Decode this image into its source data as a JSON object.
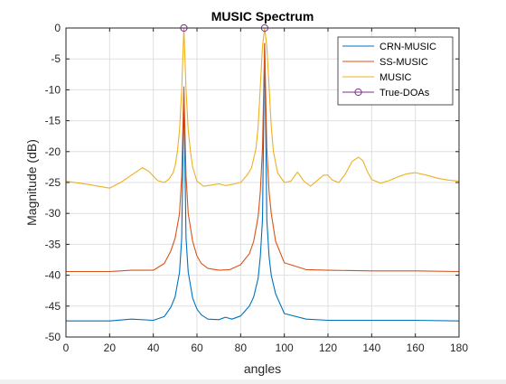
{
  "chart_data": {
    "type": "line",
    "title": "MUSIC Spectrum",
    "xlabel": "angles",
    "ylabel": "Magnitude (dB)",
    "xlim": [
      0,
      180
    ],
    "ylim": [
      -50,
      0
    ],
    "xticks": [
      0,
      20,
      40,
      60,
      80,
      100,
      120,
      140,
      160,
      180
    ],
    "yticks": [
      0,
      -5,
      -10,
      -15,
      -20,
      -25,
      -30,
      -35,
      -40,
      -45,
      -50
    ],
    "grid": true,
    "legend_position": "top-right",
    "series": [
      {
        "name": "CRN-MUSIC",
        "color": "#0072BD",
        "x": [
          0,
          20,
          30,
          40,
          45,
          48,
          50,
          52,
          53,
          54,
          55,
          56,
          58,
          60,
          62,
          65,
          70,
          73,
          76,
          80,
          84,
          86,
          88,
          89,
          90,
          91,
          92,
          93,
          94,
          96,
          100,
          110,
          120,
          140,
          160,
          180
        ],
        "y": [
          -47.4,
          -47.4,
          -47.1,
          -47.3,
          -46.7,
          -45.2,
          -43.5,
          -39.5,
          -34.0,
          -10.5,
          -34.0,
          -39.5,
          -43.7,
          -45.5,
          -46.4,
          -47.1,
          -47.2,
          -46.8,
          -47.1,
          -46.6,
          -45.0,
          -43.5,
          -40.5,
          -37.0,
          -31.0,
          -2.5,
          -31.0,
          -37.0,
          -40.0,
          -43.0,
          -46.2,
          -47.1,
          -47.3,
          -47.3,
          -47.3,
          -47.4
        ]
      },
      {
        "name": "SS-MUSIC",
        "color": "#D95319",
        "x": [
          0,
          20,
          30,
          40,
          45,
          48,
          50,
          52,
          53,
          54,
          55,
          56,
          58,
          60,
          62,
          65,
          70,
          75,
          80,
          84,
          86,
          88,
          89,
          90,
          91,
          92,
          93,
          94,
          96,
          100,
          110,
          120,
          140,
          160,
          180
        ],
        "y": [
          -39.4,
          -39.4,
          -39.2,
          -39.2,
          -38.1,
          -36.1,
          -34.0,
          -30.0,
          -24.0,
          -9.5,
          -24.0,
          -30.0,
          -34.5,
          -36.9,
          -38.1,
          -38.9,
          -39.2,
          -39.1,
          -38.3,
          -36.5,
          -34.5,
          -30.5,
          -26.5,
          -19.5,
          -2.5,
          -19.5,
          -26.5,
          -30.0,
          -34.5,
          -38.0,
          -39.1,
          -39.2,
          -39.3,
          -39.3,
          -39.4
        ]
      },
      {
        "name": "MUSIC",
        "color": "#EDB120",
        "x": [
          0,
          10,
          20,
          25,
          30,
          35,
          38,
          42,
          45,
          47,
          49,
          50,
          51,
          52,
          53,
          54,
          55,
          56,
          57,
          58,
          60,
          63,
          67,
          70,
          73,
          76,
          80,
          83,
          85,
          87,
          88,
          89,
          90,
          91,
          92,
          93,
          94,
          95,
          97,
          100,
          103,
          106,
          109,
          112,
          115,
          118,
          120,
          122,
          125,
          128,
          131,
          134,
          136,
          138,
          140,
          144,
          148,
          152,
          156,
          160,
          165,
          170,
          175,
          180
        ],
        "y": [
          -24.8,
          -25.3,
          -25.9,
          -25.0,
          -23.8,
          -22.6,
          -23.2,
          -24.7,
          -25.0,
          -24.5,
          -23.5,
          -22.3,
          -20.0,
          -16.5,
          -10.0,
          0.0,
          -10.0,
          -16.5,
          -20.0,
          -22.5,
          -24.8,
          -25.6,
          -25.4,
          -25.2,
          -25.5,
          -25.3,
          -25.0,
          -23.8,
          -22.6,
          -19.5,
          -16.0,
          -9.5,
          -3.0,
          0.0,
          -3.0,
          -9.5,
          -16.0,
          -20.0,
          -23.5,
          -25.0,
          -24.8,
          -23.3,
          -24.8,
          -25.6,
          -24.7,
          -23.8,
          -23.8,
          -24.6,
          -25.0,
          -23.6,
          -21.6,
          -20.9,
          -21.5,
          -23.2,
          -24.5,
          -25.1,
          -24.7,
          -24.1,
          -23.6,
          -23.4,
          -23.8,
          -24.3,
          -24.6,
          -24.8
        ]
      }
    ],
    "markers": {
      "name": "True-DOAs",
      "color": "#7E2F8E",
      "x": [
        54,
        91
      ],
      "y": [
        0,
        0
      ]
    }
  }
}
